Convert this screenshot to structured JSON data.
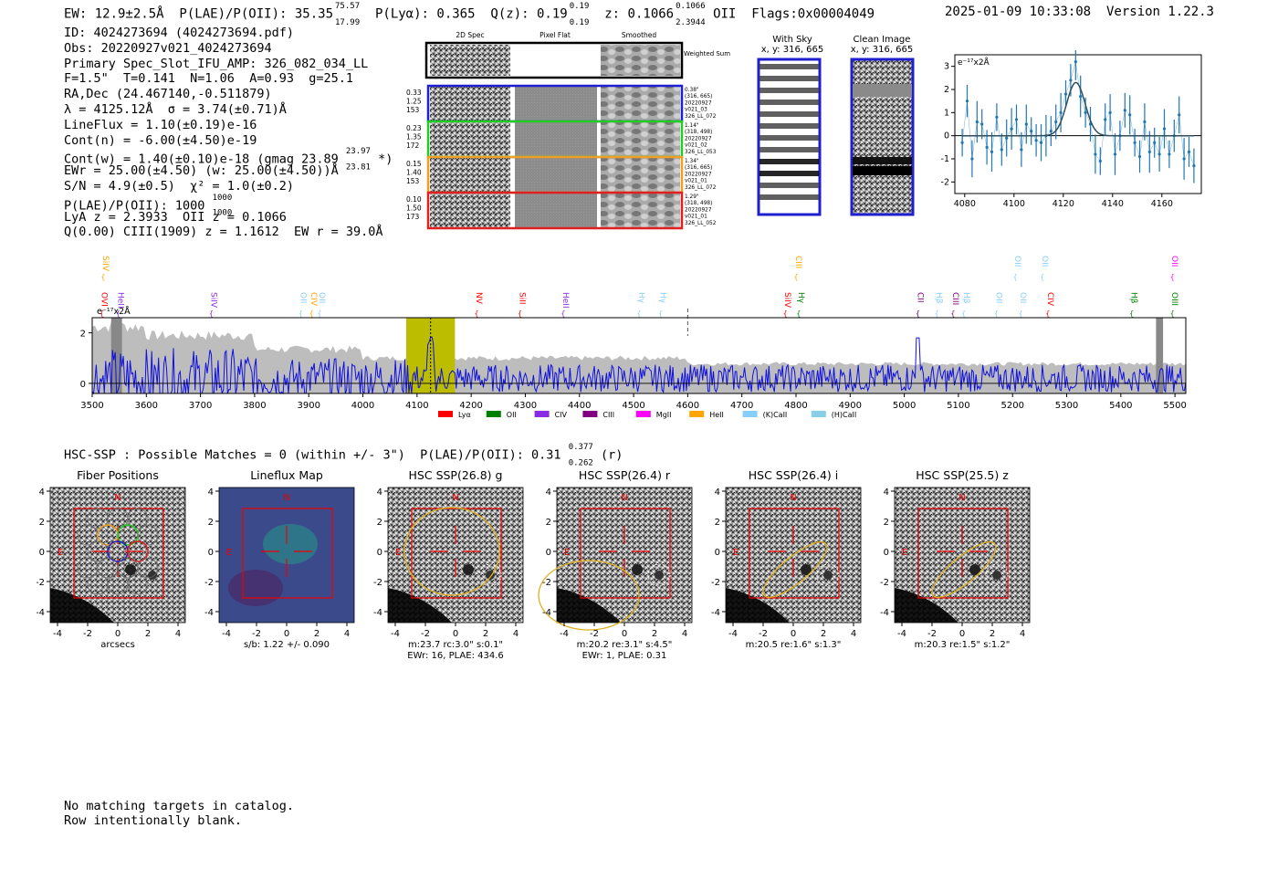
{
  "header": {
    "main": "EW: 12.9±2.5Å  P(LAE)/P(OII): 35.35",
    "plae_sup": "75.57",
    "plae_sub": "17.99",
    "plya": "P(Lyα): 0.365",
    "qz": "Q(z): 0.19",
    "qz_sup": "0.19",
    "qz_sub": "0.19",
    "z": "z: 0.1066",
    "z_sup": "0.1066",
    "z_sub": "2.3944",
    "z_line": "OII",
    "flags": "Flags:0x00004049",
    "datetime": "2025-01-09 10:33:08",
    "version": "Version 1.22.3"
  },
  "info": {
    "id": "ID: 4024273694 (4024273694.pdf)",
    "obs": "Obs: 20220927v021_4024273694",
    "primary": "Primary Spec_Slot_IFU_AMP: 326_082_034_LL",
    "fiber": "F=1.5\"  T=0.141  N=1.06  A=0.93  g=25.1",
    "radec": "RA,Dec (24.467140,-0.511879)",
    "lambda": "λ = 4125.12Å  σ = 3.74(±0.71)Å",
    "lineflux": "LineFlux = 1.10(±0.19)e-16",
    "contn": "Cont(n) = -6.00(±4.50)e-19",
    "contw": "Cont(w) = 1.40(±0.10)e-18 (gmag 23.89",
    "contw_sup": "23.97",
    "contw_sub": "23.81",
    "contw_tail": "*)",
    "ewr": "EWr = 25.00(±4.50) (w: 25.00(±4.50))Å",
    "sn": "S/N = 4.9(±0.5)  χ² = 1.0(±0.2)",
    "plae": "P(LAE)/P(OII): 1000",
    "plae_sup": "1000",
    "plae_sub": "1000",
    "lya": "LyA z = 2.3933  OII z = 0.1066",
    "q": "Q(0.00) CIII(1909) z = 1.1612  EW r = 39.0Å"
  },
  "cutouts": {
    "col_labels": [
      "2D Spec",
      "Pixel Flat",
      "Smoothed"
    ],
    "weighted_label": "Weighted Sum",
    "rows": [
      {
        "left": [
          "0.33",
          "1.25",
          "153"
        ],
        "right": [
          "0.38\"",
          "(316, 665)",
          "20220927",
          "v021_03",
          "326_LL_072"
        ],
        "color": "#1f1fd0"
      },
      {
        "left": [
          "0.23",
          "1.35",
          "172"
        ],
        "right": [
          "1.14\"",
          "(318, 498)",
          "20220927",
          "v021_02",
          "326_LL_053"
        ],
        "color": "#22cc22"
      },
      {
        "left": [
          "0.15",
          "1.40",
          "153"
        ],
        "right": [
          "1.34\"",
          "(316, 665)",
          "20220927",
          "v021_01",
          "326_LL_072"
        ],
        "color": "#f0a020"
      },
      {
        "left": [
          "0.10",
          "1.50",
          "173"
        ],
        "right": [
          "1.29\"",
          "(318, 498)",
          "20220927",
          "v021_01",
          "326_LL_052"
        ],
        "color": "#e02020"
      }
    ],
    "with_sky": {
      "title": "With Sky",
      "coords": "x, y: 316, 665"
    },
    "clean": {
      "title": "Clean Image",
      "coords": "x, y: 316, 665"
    }
  },
  "zoom_chart": {
    "unit_label": "e⁻¹⁷x2Å",
    "x": [
      4079,
      4081,
      4083,
      4085,
      4087,
      4089,
      4091,
      4093,
      4095,
      4097,
      4099,
      4101,
      4103,
      4105,
      4107,
      4109,
      4111,
      4113,
      4115,
      4117,
      4119,
      4121,
      4123,
      4125,
      4127,
      4129,
      4131,
      4133,
      4135,
      4137,
      4139,
      4141,
      4143,
      4145,
      4147,
      4149,
      4151,
      4153,
      4155,
      4157,
      4159,
      4161,
      4163,
      4165,
      4167,
      4169,
      4171,
      4173
    ],
    "y": [
      -0.3,
      1.5,
      -1.0,
      0.6,
      0.5,
      -0.5,
      -0.7,
      0.8,
      -0.6,
      -0.1,
      0.3,
      0.7,
      -0.6,
      0.5,
      0.2,
      -0.2,
      -0.3,
      0.0,
      0.2,
      0.6,
      1.0,
      1.8,
      2.4,
      3.2,
      1.7,
      1.0,
      0.5,
      -0.8,
      -1.1,
      0.7,
      1.0,
      -0.8,
      0.0,
      1.1,
      0.9,
      -0.3,
      -0.9,
      0.6,
      -0.7,
      -0.3,
      -0.8,
      0.3,
      -0.8,
      0.0,
      0.9,
      -1.0,
      -0.7,
      -1.3
    ],
    "fit_center": 4125.1,
    "fit_sigma": 3.74,
    "fit_amp": 2.3,
    "xlim": [
      4076,
      4176
    ],
    "ylim": [
      -2.5,
      3.5
    ],
    "xticks": [
      4080,
      4100,
      4120,
      4140,
      4160
    ],
    "yticks": [
      -2,
      -1,
      0,
      1,
      2,
      3
    ]
  },
  "chart_data": {
    "type": "line",
    "unit_label": "e⁻¹⁷x2Å",
    "xlim": [
      3500,
      5520
    ],
    "ylim": [
      -0.4,
      2.6
    ],
    "xticks": [
      3500,
      3600,
      3700,
      3800,
      3900,
      4000,
      4100,
      4200,
      4300,
      4400,
      4500,
      4600,
      4700,
      4800,
      4900,
      5000,
      5100,
      5200,
      5300,
      5400,
      5500
    ],
    "yticks": [
      0,
      2
    ],
    "highlight": [
      4080,
      4170
    ],
    "line_marker": 4125,
    "dashed_marker": 4600,
    "legend": [
      {
        "name": "Lyα",
        "color": "#ff0000"
      },
      {
        "name": "OII",
        "color": "#008000"
      },
      {
        "name": "CIV",
        "color": "#8a2be2"
      },
      {
        "name": "CIII",
        "color": "#800080"
      },
      {
        "name": "MgII",
        "color": "#ff00ff"
      },
      {
        "name": "HeII",
        "color": "#ffa500"
      },
      {
        "name": "(K)CaII",
        "color": "#87cefa"
      },
      {
        "name": "(H)CaII",
        "color": "#87ceeb"
      }
    ],
    "upper_labels": [
      {
        "text": "SiIV",
        "x": 3520,
        "color": "#ffa500"
      },
      {
        "text": "CIII",
        "x": 4800,
        "color": "#ffa500"
      },
      {
        "text": "OII",
        "x": 5205,
        "color": "#87cefa"
      },
      {
        "text": "OII",
        "x": 5255,
        "color": "#87cefa"
      },
      {
        "text": "OII",
        "x": 5495,
        "color": "#ff00ff"
      }
    ],
    "line_labels": [
      {
        "text": "OVI",
        "x": 3518,
        "color": "#ff0000"
      },
      {
        "text": "HeII",
        "x": 3548,
        "color": "#8a2be2"
      },
      {
        "text": "SiIV",
        "x": 3720,
        "color": "#8a2be2"
      },
      {
        "text": "OII",
        "x": 3885,
        "color": "#87cefa"
      },
      {
        "text": "CIV",
        "x": 3905,
        "color": "#ffa500"
      },
      {
        "text": "OII",
        "x": 3920,
        "color": "#87cefa"
      },
      {
        "text": "NV",
        "x": 4210,
        "color": "#ff0000"
      },
      {
        "text": "SiII",
        "x": 4290,
        "color": "#ff0000"
      },
      {
        "text": "HeII",
        "x": 4370,
        "color": "#8a2be2"
      },
      {
        "text": "Hγ",
        "x": 4510,
        "color": "#87cefa"
      },
      {
        "text": "Hγ",
        "x": 4550,
        "color": "#87cefa"
      },
      {
        "text": "SiIV",
        "x": 4780,
        "color": "#ff0000"
      },
      {
        "text": "Hγ",
        "x": 4805,
        "color": "#008000"
      },
      {
        "text": "CII",
        "x": 5025,
        "color": "#800080"
      },
      {
        "text": "Hβ",
        "x": 5060,
        "color": "#87cefa"
      },
      {
        "text": "CIII",
        "x": 5090,
        "color": "#800080"
      },
      {
        "text": "Hβ",
        "x": 5110,
        "color": "#87cefa"
      },
      {
        "text": "OII",
        "x": 5170,
        "color": "#87cefa"
      },
      {
        "text": "OII",
        "x": 5215,
        "color": "#87cefa"
      },
      {
        "text": "CIV",
        "x": 5265,
        "color": "#ff0000"
      },
      {
        "text": "Hβ",
        "x": 5420,
        "color": "#008000"
      },
      {
        "text": "OIII",
        "x": 5495,
        "color": "#008000"
      }
    ]
  },
  "hsc": {
    "summary": "HSC-SSP : Possible Matches = 0 (within +/- 3\")  P(LAE)/P(OII): 0.31",
    "sup": "0.377",
    "sub": "0.262",
    "tail": "(r)",
    "panels": [
      {
        "title": "Fiber Positions",
        "caption1": "arcsecs",
        "caption2": "",
        "kind": "fiber"
      },
      {
        "title": "Lineflux Map",
        "caption1": "s/b: 1.22 +/- 0.090",
        "caption2": "",
        "kind": "flux"
      },
      {
        "title": "HSC SSP(26.8) g",
        "caption1": "m:23.7 rc:3.0\"  s:0.1\"",
        "caption2": "EWr: 16, PLAE: 434.6",
        "kind": "g"
      },
      {
        "title": "HSC SSP(26.4) r",
        "caption1": "m:20.2  re:3.1\"  s:4.5\"",
        "caption2": "EWr: 1, PLAE: 0.31",
        "kind": "r"
      },
      {
        "title": "HSC SSP(26.4) i",
        "caption1": "m:20.5  re:1.6\"  s:1.3\"",
        "caption2": "",
        "kind": "i"
      },
      {
        "title": "HSC SSP(25.5) z",
        "caption1": "m:20.3  re:1.5\"  s:1.2\"",
        "caption2": "",
        "kind": "z"
      }
    ],
    "axis_ticks": [
      -4,
      -2,
      0,
      2,
      4
    ],
    "n_label": "N",
    "e_label": "E"
  },
  "footer": {
    "line1": "No matching targets in catalog.",
    "line2": "Row intentionally blank."
  }
}
